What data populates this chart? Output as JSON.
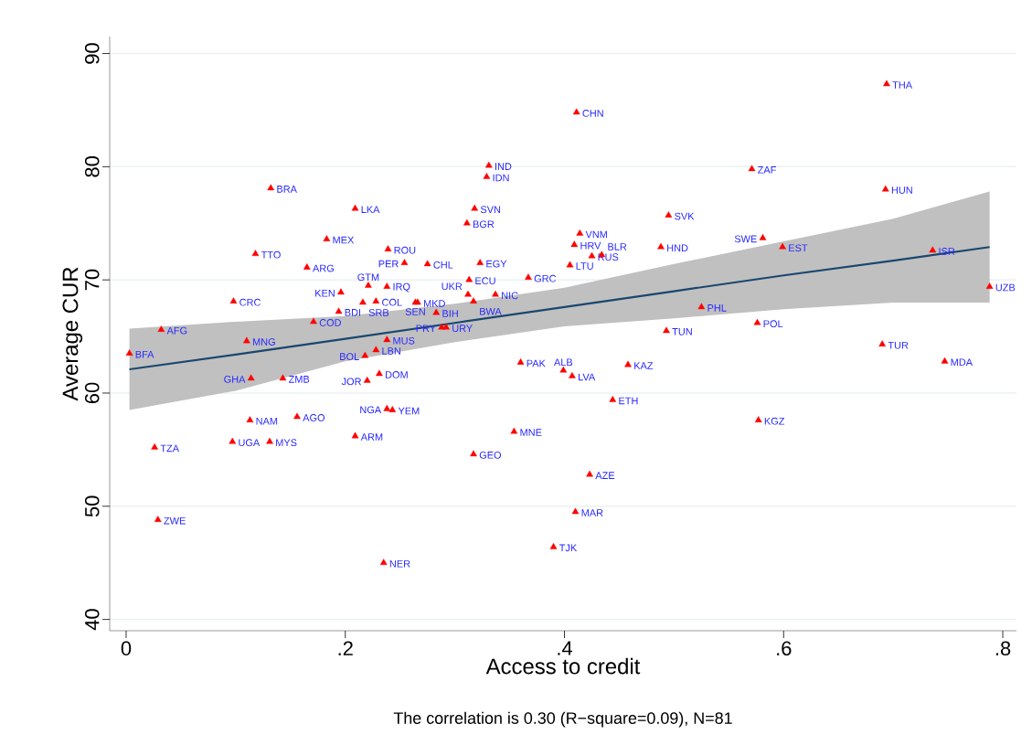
{
  "chart_data": {
    "type": "scatter",
    "xlabel": "Access to credit",
    "ylabel": "Average CUR",
    "xlim": [
      -0.015,
      0.8125
    ],
    "ylim": [
      39,
      91.5
    ],
    "xticks": [
      0,
      {
        "value": 0.2,
        "label": ".2"
      },
      {
        "value": 0.4,
        "label": ".4"
      },
      {
        "value": 0.6,
        "label": ".6"
      },
      {
        "value": 0.8,
        "label": ".8"
      }
    ],
    "yticks": [
      40,
      50,
      60,
      70,
      80,
      90
    ],
    "grid": "y",
    "marker": "triangle",
    "series": [
      {
        "color": "#ff0000",
        "x": [
          0.003,
          0.032,
          0.029,
          0.026,
          0.098,
          0.11,
          0.114,
          0.143,
          0.113,
          0.156,
          0.097,
          0.131,
          0.118,
          0.132,
          0.183,
          0.165,
          0.209,
          0.171,
          0.196,
          0.194,
          0.221,
          0.238,
          0.216,
          0.228,
          0.239,
          0.254,
          0.275,
          0.264,
          0.266,
          0.238,
          0.228,
          0.218,
          0.231,
          0.22,
          0.238,
          0.243,
          0.209,
          0.235,
          0.283,
          0.288,
          0.292,
          0.313,
          0.312,
          0.337,
          0.317,
          0.323,
          0.367,
          0.318,
          0.311,
          0.331,
          0.329,
          0.411,
          0.36,
          0.399,
          0.407,
          0.444,
          0.354,
          0.317,
          0.423,
          0.41,
          0.39,
          0.414,
          0.409,
          0.405,
          0.425,
          0.434,
          0.488,
          0.495,
          0.458,
          0.493,
          0.525,
          0.571,
          0.581,
          0.599,
          0.576,
          0.577,
          0.694,
          0.693,
          0.69,
          0.736,
          0.747,
          0.788
        ],
        "values": [
          63.5,
          65.6,
          48.8,
          55.2,
          68.1,
          64.6,
          61.3,
          61.3,
          57.6,
          57.9,
          55.7,
          55.7,
          72.3,
          78.1,
          73.6,
          71.1,
          76.3,
          66.3,
          68.9,
          67.2,
          69.5,
          69.4,
          68.0,
          68.1,
          72.7,
          71.5,
          71.4,
          68.0,
          68.0,
          64.7,
          63.8,
          63.3,
          61.7,
          61.1,
          58.6,
          58.5,
          56.2,
          45.0,
          67.1,
          65.8,
          65.8,
          70.0,
          68.7,
          68.7,
          68.1,
          71.5,
          70.2,
          76.3,
          75.0,
          80.1,
          79.1,
          84.8,
          62.7,
          62.0,
          61.5,
          59.4,
          56.6,
          54.6,
          52.8,
          49.5,
          46.4,
          74.1,
          73.1,
          71.3,
          72.1,
          72.2,
          72.9,
          75.7,
          62.5,
          65.5,
          67.6,
          79.8,
          73.7,
          72.9,
          66.2,
          57.6,
          87.3,
          78.0,
          64.3,
          72.6,
          62.8,
          69.4
        ]
      },
      {
        "type": "line",
        "color": "#1a476f",
        "marker": "none",
        "x": [
          0.003,
          0.1,
          0.2,
          0.3,
          0.4,
          0.5,
          0.6,
          0.7,
          0.788
        ],
        "values": [
          62.1,
          63.4,
          64.8,
          66.2,
          67.6,
          69.0,
          70.4,
          71.7,
          72.9
        ],
        "upper": [
          65.7,
          66.3,
          66.8,
          67.9,
          69.3,
          71.4,
          73.4,
          75.4,
          77.8
        ],
        "lower": [
          58.5,
          60.2,
          62.8,
          64.5,
          65.9,
          66.6,
          67.4,
          68.0,
          68.0
        ]
      }
    ],
    "annotations": [
      "The correlation is 0.30 (R−square=0.09), N=81",
      {
        "text": "BFA",
        "x": 0.003,
        "y": 63.5
      },
      {
        "text": "AFG",
        "x": 0.032,
        "y": 65.6
      },
      {
        "text": "ZWE",
        "x": 0.029,
        "y": 48.8
      },
      {
        "text": "TZA",
        "x": 0.026,
        "y": 55.2
      },
      {
        "text": "CRC",
        "x": 0.098,
        "y": 68.1
      },
      {
        "text": "MNG",
        "x": 0.11,
        "y": 64.6
      },
      {
        "text": "GHA",
        "x": 0.114,
        "y": 61.3
      },
      {
        "text": "ZMB",
        "x": 0.143,
        "y": 61.3
      },
      {
        "text": "NAM",
        "x": 0.113,
        "y": 57.6
      },
      {
        "text": "AGO",
        "x": 0.156,
        "y": 57.9
      },
      {
        "text": "UGA",
        "x": 0.097,
        "y": 55.7
      },
      {
        "text": "MYS",
        "x": 0.131,
        "y": 55.7
      },
      {
        "text": "TTO",
        "x": 0.118,
        "y": 72.3
      },
      {
        "text": "BRA",
        "x": 0.132,
        "y": 78.1
      },
      {
        "text": "MEX",
        "x": 0.183,
        "y": 73.6
      },
      {
        "text": "ARG",
        "x": 0.165,
        "y": 71.1
      },
      {
        "text": "LKA",
        "x": 0.209,
        "y": 76.3
      },
      {
        "text": "COD",
        "x": 0.171,
        "y": 66.3
      },
      {
        "text": "KEN",
        "x": 0.196,
        "y": 68.9
      },
      {
        "text": "BDI",
        "x": 0.194,
        "y": 67.2
      },
      {
        "text": "GTM",
        "x": 0.221,
        "y": 69.5
      },
      {
        "text": "IRQ",
        "x": 0.238,
        "y": 69.4
      },
      {
        "text": "SRB",
        "x": 0.216,
        "y": 68.0
      },
      {
        "text": "COL",
        "x": 0.228,
        "y": 68.1
      },
      {
        "text": "ROU",
        "x": 0.239,
        "y": 72.7
      },
      {
        "text": "PER",
        "x": 0.254,
        "y": 71.5
      },
      {
        "text": "CHL",
        "x": 0.275,
        "y": 71.4
      },
      {
        "text": "SEN",
        "x": 0.264,
        "y": 68.0
      },
      {
        "text": "MKD",
        "x": 0.266,
        "y": 68.0
      },
      {
        "text": "MUS",
        "x": 0.238,
        "y": 64.7
      },
      {
        "text": "LBN",
        "x": 0.228,
        "y": 63.8
      },
      {
        "text": "BOL",
        "x": 0.218,
        "y": 63.3
      },
      {
        "text": "DOM",
        "x": 0.231,
        "y": 61.7
      },
      {
        "text": "JOR",
        "x": 0.22,
        "y": 61.1
      },
      {
        "text": "NGA",
        "x": 0.238,
        "y": 58.6
      },
      {
        "text": "YEM",
        "x": 0.243,
        "y": 58.5
      },
      {
        "text": "ARM",
        "x": 0.209,
        "y": 56.2
      },
      {
        "text": "NER",
        "x": 0.235,
        "y": 45.0
      },
      {
        "text": "BIH",
        "x": 0.283,
        "y": 67.1
      },
      {
        "text": "PRY",
        "x": 0.288,
        "y": 65.8
      },
      {
        "text": "URY",
        "x": 0.292,
        "y": 65.8
      },
      {
        "text": "ECU",
        "x": 0.313,
        "y": 70.0
      },
      {
        "text": "UKR",
        "x": 0.312,
        "y": 68.7
      },
      {
        "text": "NIC",
        "x": 0.337,
        "y": 68.7
      },
      {
        "text": "BWA",
        "x": 0.317,
        "y": 68.1
      },
      {
        "text": "EGY",
        "x": 0.323,
        "y": 71.5
      },
      {
        "text": "GRC",
        "x": 0.367,
        "y": 70.2
      },
      {
        "text": "SVN",
        "x": 0.318,
        "y": 76.3
      },
      {
        "text": "BGR",
        "x": 0.311,
        "y": 75.0
      },
      {
        "text": "IND",
        "x": 0.331,
        "y": 80.1
      },
      {
        "text": "IDN",
        "x": 0.329,
        "y": 79.1
      },
      {
        "text": "CHN",
        "x": 0.411,
        "y": 84.8
      },
      {
        "text": "PAK",
        "x": 0.36,
        "y": 62.7
      },
      {
        "text": "ALB",
        "x": 0.399,
        "y": 62.0
      },
      {
        "text": "LVA",
        "x": 0.407,
        "y": 61.5
      },
      {
        "text": "ETH",
        "x": 0.444,
        "y": 59.4
      },
      {
        "text": "MNE",
        "x": 0.354,
        "y": 56.6
      },
      {
        "text": "GEO",
        "x": 0.317,
        "y": 54.6
      },
      {
        "text": "AZE",
        "x": 0.423,
        "y": 52.8
      },
      {
        "text": "MAR",
        "x": 0.41,
        "y": 49.5
      },
      {
        "text": "TJK",
        "x": 0.39,
        "y": 46.4
      },
      {
        "text": "VNM",
        "x": 0.414,
        "y": 74.1
      },
      {
        "text": "HRV",
        "x": 0.409,
        "y": 73.1
      },
      {
        "text": "LTU",
        "x": 0.405,
        "y": 71.3
      },
      {
        "text": "RUS",
        "x": 0.425,
        "y": 72.1
      },
      {
        "text": "BLR",
        "x": 0.434,
        "y": 72.2
      },
      {
        "text": "HND",
        "x": 0.488,
        "y": 72.9
      },
      {
        "text": "SVK",
        "x": 0.495,
        "y": 75.7
      },
      {
        "text": "KAZ",
        "x": 0.458,
        "y": 62.5
      },
      {
        "text": "TUN",
        "x": 0.493,
        "y": 65.5
      },
      {
        "text": "PHL",
        "x": 0.525,
        "y": 67.6
      },
      {
        "text": "ZAF",
        "x": 0.571,
        "y": 79.8
      },
      {
        "text": "SWE",
        "x": 0.581,
        "y": 73.7
      },
      {
        "text": "EST",
        "x": 0.599,
        "y": 72.9
      },
      {
        "text": "POL",
        "x": 0.576,
        "y": 66.2
      },
      {
        "text": "KGZ",
        "x": 0.577,
        "y": 57.6
      },
      {
        "text": "THA",
        "x": 0.694,
        "y": 87.3
      },
      {
        "text": "HUN",
        "x": 0.693,
        "y": 78.0
      },
      {
        "text": "TUR",
        "x": 0.69,
        "y": 64.3
      },
      {
        "text": "ISR",
        "x": 0.736,
        "y": 72.6
      },
      {
        "text": "MDA",
        "x": 0.747,
        "y": 62.8
      },
      {
        "text": "UZB",
        "x": 0.788,
        "y": 69.4
      }
    ]
  }
}
